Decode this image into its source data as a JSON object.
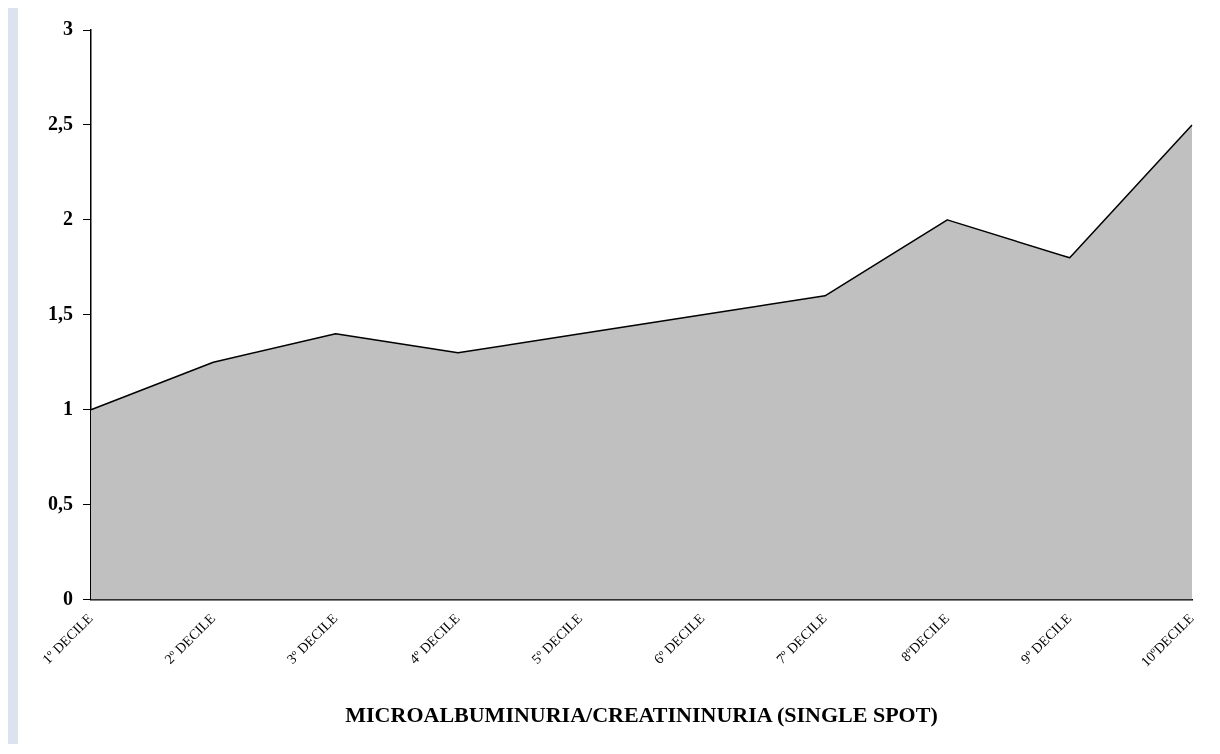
{
  "chart_data": {
    "type": "area",
    "xlabel": "MICROALBUMINURIA/CREATININURIA (SINGLE SPOT)",
    "categories": [
      "1º DECILE",
      "2º DECILE",
      "3º DECILE",
      "4º DECILE",
      "5º DECILE",
      "6º DECILE",
      "7º DECILE",
      "8ºDECILE",
      "9º DECILE",
      "10ºDECILE"
    ],
    "values": [
      1,
      1.25,
      1.4,
      1.3,
      1.4,
      1.5,
      1.6,
      2,
      1.8,
      2.5
    ],
    "color": "#c0c0c0",
    "ylim": [
      0,
      3
    ],
    "yticks": [
      0,
      {
        "value": 0.5,
        "label": "0,5"
      },
      1,
      {
        "value": 1.5,
        "label": "1,5"
      },
      2,
      {
        "value": 2.5,
        "label": "2,5"
      },
      3
    ],
    "grid": false,
    "legend": false
  }
}
